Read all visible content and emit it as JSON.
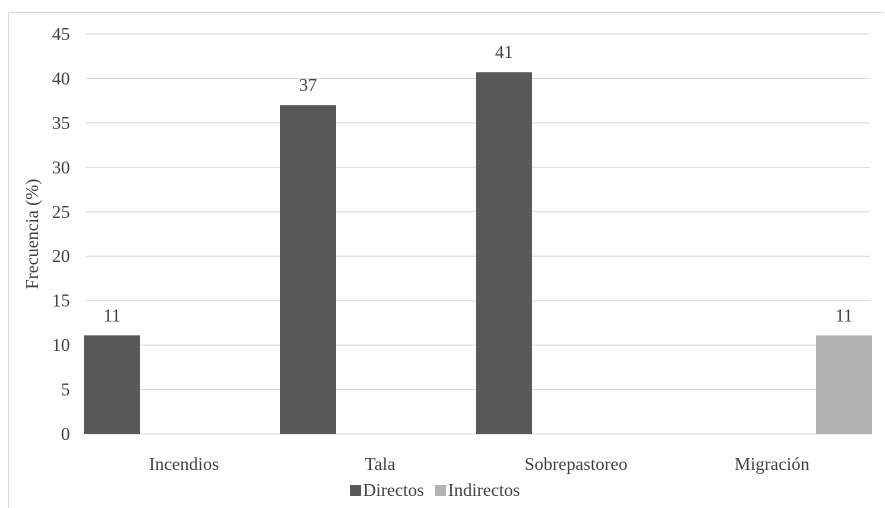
{
  "chart_data": {
    "type": "bar",
    "categories": [
      "Incendios",
      "Tala",
      "Sobrepastoreo",
      "Migración"
    ],
    "series": [
      {
        "name": "Directos",
        "values": [
          11.1,
          37.0,
          40.7,
          null
        ],
        "labels": [
          "11",
          "37",
          "41",
          ""
        ],
        "color": "#595959"
      },
      {
        "name": "Indirectos",
        "values": [
          null,
          null,
          null,
          11.1
        ],
        "labels": [
          "",
          "",
          "",
          "11"
        ],
        "color": "#b3b3b3"
      }
    ],
    "ylabel": "Frecuencia (%)",
    "xlabel": "",
    "ylim": [
      0,
      45
    ],
    "yticks": [
      0,
      5,
      10,
      15,
      20,
      25,
      30,
      35,
      40,
      45
    ],
    "grid": true,
    "legend": "bottom"
  }
}
